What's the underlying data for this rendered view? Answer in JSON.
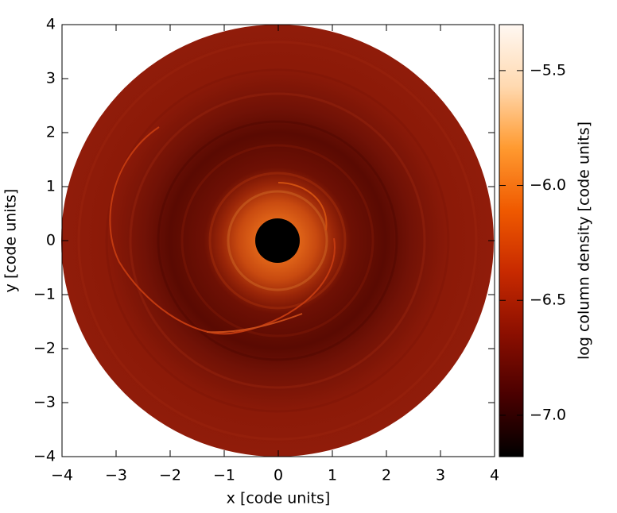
{
  "chart_data": {
    "type": "heatmap",
    "xlabel": "x [code units]",
    "ylabel": "y [code units]",
    "xlim": [
      -4,
      4
    ],
    "ylim": [
      -4,
      4
    ],
    "xticks": [
      {
        "value": -4,
        "label": "−4"
      },
      {
        "value": -3,
        "label": "−3"
      },
      {
        "value": -2,
        "label": "−2"
      },
      {
        "value": -1,
        "label": "−1"
      },
      0,
      1,
      2,
      3,
      4
    ],
    "yticks": [
      {
        "value": -4,
        "label": "−4"
      },
      {
        "value": -3,
        "label": "−3"
      },
      {
        "value": -2,
        "label": "−2"
      },
      {
        "value": -1,
        "label": "−1"
      },
      0,
      1,
      2,
      3,
      4
    ],
    "colorbar": {
      "label": "log column density [code units]",
      "lim": [
        -7.18,
        -5.3
      ],
      "ticks": [
        {
          "value": -7.0,
          "label": "−7.0"
        },
        {
          "value": -6.5,
          "label": "−6.5"
        },
        {
          "value": -6.0,
          "label": "−6.0"
        },
        {
          "value": -5.5,
          "label": "−5.5"
        }
      ],
      "colormap": [
        "#000000",
        "#4a0000",
        "#8c0f00",
        "#c82a00",
        "#f05a00",
        "#ff9a30",
        "#ffd9b0",
        "#fff8f2"
      ]
    }
  }
}
